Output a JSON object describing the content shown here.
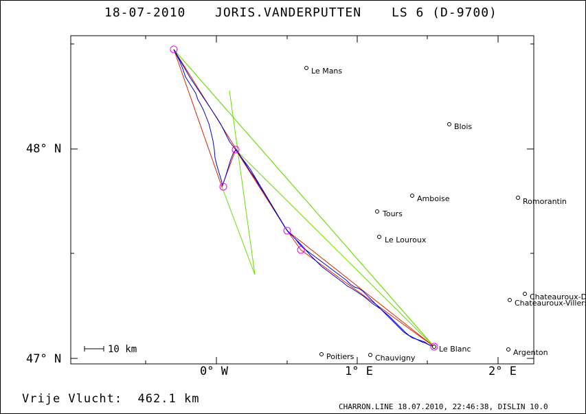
{
  "header": {
    "date": "18-07-2010",
    "pilot": "JORIS.VANDERPUTTEN",
    "glider": "LS 6 (D-9700)"
  },
  "axes": {
    "y_labels": [
      "48° N",
      "47° N"
    ],
    "x_labels": [
      "0° W",
      "1° E",
      "2° E"
    ]
  },
  "scale_bar": {
    "label": "10 km"
  },
  "cities": [
    {
      "name": "Le Mans"
    },
    {
      "name": "Blois"
    },
    {
      "name": "Amboise"
    },
    {
      "name": "Romorantin"
    },
    {
      "name": "Tours"
    },
    {
      "name": "Le Louroux"
    },
    {
      "name": "Chateauroux-D"
    },
    {
      "name": "Chateauroux-Villers"
    },
    {
      "name": "Le Blanc"
    },
    {
      "name": "Argenton"
    },
    {
      "name": "Poitiers"
    },
    {
      "name": "Chauvigny"
    }
  ],
  "footer": {
    "distance_label": "Vrije Vlucht:",
    "distance_value": "462.1 km",
    "software": "CHARRON.LINE 18.07.2010, 22:46:38, DISLIN 10.0"
  },
  "colors": {
    "track": "#0000cc",
    "task": "#dd2200",
    "legs": "#66dd00",
    "turnpoints": "#ee00ee"
  }
}
